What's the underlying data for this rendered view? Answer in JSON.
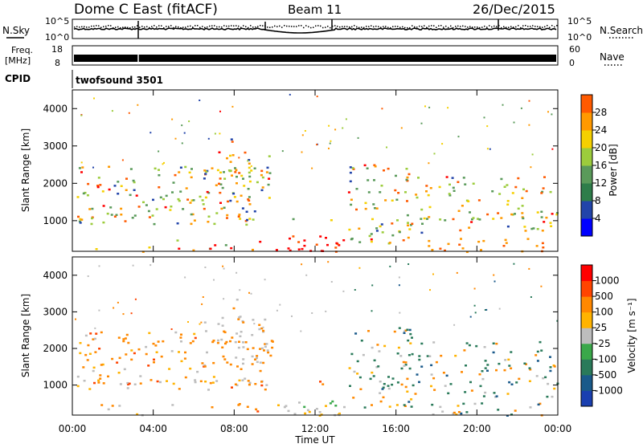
{
  "header": {
    "title": "Dome C East (fitACF)",
    "beam": "Beam 11",
    "date": "26/Dec/2015"
  },
  "noise_panel": {
    "left_label": "N.Sky",
    "right_label": "N.Search",
    "left_ticks": [
      "10^5",
      "10^0"
    ],
    "right_ticks": [
      "10^5",
      "10^0"
    ]
  },
  "freq_panel": {
    "left_label_1": "Freq.",
    "left_label_2": "[MHz]",
    "right_label": "Nave",
    "left_ticks": [
      "18",
      "8"
    ],
    "right_ticks": [
      "60",
      "0"
    ]
  },
  "cpid_panel": {
    "label": "CPID",
    "mode": "twofsound 3501"
  },
  "power_panel": {
    "ylabel": "Slant Range [km]",
    "yticks": [
      "1000",
      "2000",
      "3000",
      "4000"
    ],
    "colorbar_label": "Power [dB]",
    "colorbar_ticks": [
      "4",
      "8",
      "12",
      "16",
      "20",
      "24",
      "28"
    ],
    "colors": [
      "#0000ff",
      "#2244aa",
      "#2e7d4a",
      "#5a9a5a",
      "#9ccc3c",
      "#f5d000",
      "#ff9900",
      "#ff5a00",
      "#ff0000"
    ]
  },
  "velocity_panel": {
    "ylabel": "Slant Range [km]",
    "yticks": [
      "1000",
      "2000",
      "3000",
      "4000"
    ],
    "colorbar_label": "Velocity [m s⁻¹]",
    "colorbar_ticks": [
      "1000",
      "500",
      "100",
      "25",
      "-25",
      "-100",
      "-500",
      "-1000"
    ],
    "colors": [
      "#1a3fb0",
      "#1a5a8a",
      "#2a7a5a",
      "#3aa84a",
      "#bdbdbd",
      "#ffb300",
      "#ff8800",
      "#ff4400",
      "#ff0000"
    ]
  },
  "xaxis": {
    "label": "Time UT",
    "ticks": [
      "00:00",
      "04:00",
      "08:00",
      "12:00",
      "16:00",
      "20:00",
      "00:00"
    ]
  },
  "chart_data": [
    {
      "type": "line",
      "title": "Dome C East (fitACF)",
      "ylabel": "N.Sky",
      "y_scale": "log",
      "ylim": [
        1,
        100000
      ],
      "xlim": [
        "00:00",
        "24:00"
      ]
    },
    {
      "type": "line",
      "ylabel": "Freq. [MHz]",
      "ylim": [
        8,
        18
      ],
      "series": [
        {
          "name": "Freq.",
          "values": []
        },
        {
          "name": "Nave",
          "values": []
        }
      ]
    },
    {
      "type": "heatmap",
      "ylabel": "Slant Range [km]",
      "xlabel": "Time UT",
      "xlim": [
        "00:00",
        "24:00"
      ],
      "ylim": [
        180,
        4500
      ],
      "colorbar": "Power [dB]",
      "colorbar_range": [
        0,
        30
      ]
    },
    {
      "type": "heatmap",
      "ylabel": "Slant Range [km]",
      "xlabel": "Time UT",
      "xlim": [
        "00:00",
        "24:00"
      ],
      "ylim": [
        180,
        4500
      ],
      "colorbar": "Velocity [m s⁻¹]",
      "colorbar_range": [
        -1000,
        1000
      ]
    }
  ]
}
